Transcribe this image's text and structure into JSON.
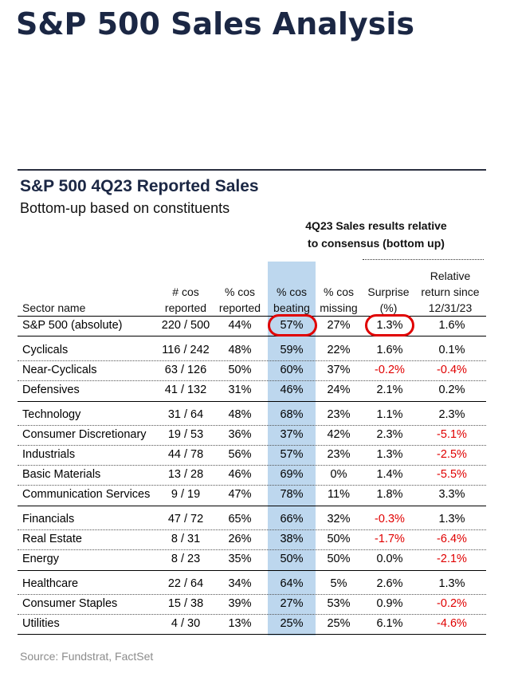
{
  "page": {
    "title": "S&P 500 Sales Analysis",
    "source": "Source: Fundstrat, FactSet"
  },
  "chart_data": {
    "type": "table",
    "title": "S&P 500 4Q23 Reported Sales",
    "subtitle": "Bottom-up based on constituents",
    "group_header_line1": "4Q23 Sales results relative",
    "group_header_line2": "to consensus (bottom up)",
    "highlight_color": "#bdd7ee",
    "negative_color": "#e00000",
    "columns": [
      {
        "lines": [
          "Sector name"
        ]
      },
      {
        "lines": [
          "# cos",
          "reported"
        ]
      },
      {
        "lines": [
          "% cos",
          "reported"
        ]
      },
      {
        "lines": [
          "% cos",
          "beating"
        ]
      },
      {
        "lines": [
          "% cos",
          "missing"
        ]
      },
      {
        "lines": [
          "Surprise",
          "(%)"
        ]
      },
      {
        "lines": [
          "Relative",
          "return since",
          "12/31/23"
        ]
      }
    ],
    "rows": [
      {
        "sector": "S&P 500 (absolute)",
        "reported": "220 / 500",
        "pct_reported": "44%",
        "pct_beating": "57%",
        "pct_missing": "27%",
        "surprise": "1.3%",
        "rel_return": "1.6%"
      },
      {
        "sector": "Cyclicals",
        "reported": "116 / 242",
        "pct_reported": "48%",
        "pct_beating": "59%",
        "pct_missing": "22%",
        "surprise": "1.6%",
        "rel_return": "0.1%"
      },
      {
        "sector": "Near-Cyclicals",
        "reported": "63 / 126",
        "pct_reported": "50%",
        "pct_beating": "60%",
        "pct_missing": "37%",
        "surprise": "-0.2%",
        "rel_return": "-0.4%"
      },
      {
        "sector": "Defensives",
        "reported": "41 / 132",
        "pct_reported": "31%",
        "pct_beating": "46%",
        "pct_missing": "24%",
        "surprise": "2.1%",
        "rel_return": "0.2%"
      },
      {
        "sector": "Technology",
        "reported": "31 / 64",
        "pct_reported": "48%",
        "pct_beating": "68%",
        "pct_missing": "23%",
        "surprise": "1.1%",
        "rel_return": "2.3%"
      },
      {
        "sector": "Consumer Discretionary",
        "reported": "19 / 53",
        "pct_reported": "36%",
        "pct_beating": "37%",
        "pct_missing": "42%",
        "surprise": "2.3%",
        "rel_return": "-5.1%"
      },
      {
        "sector": "Industrials",
        "reported": "44 / 78",
        "pct_reported": "56%",
        "pct_beating": "57%",
        "pct_missing": "23%",
        "surprise": "1.3%",
        "rel_return": "-2.5%"
      },
      {
        "sector": "Basic Materials",
        "reported": "13 / 28",
        "pct_reported": "46%",
        "pct_beating": "69%",
        "pct_missing": "0%",
        "surprise": "1.4%",
        "rel_return": "-5.5%"
      },
      {
        "sector": "Communication Services",
        "reported": "9 / 19",
        "pct_reported": "47%",
        "pct_beating": "78%",
        "pct_missing": "11%",
        "surprise": "1.8%",
        "rel_return": "3.3%"
      },
      {
        "sector": "Financials",
        "reported": "47 / 72",
        "pct_reported": "65%",
        "pct_beating": "66%",
        "pct_missing": "32%",
        "surprise": "-0.3%",
        "rel_return": "1.3%"
      },
      {
        "sector": "Real Estate",
        "reported": "8 / 31",
        "pct_reported": "26%",
        "pct_beating": "38%",
        "pct_missing": "50%",
        "surprise": "-1.7%",
        "rel_return": "-6.4%"
      },
      {
        "sector": "Energy",
        "reported": "8 / 23",
        "pct_reported": "35%",
        "pct_beating": "50%",
        "pct_missing": "50%",
        "surprise": "0.0%",
        "rel_return": "-2.1%"
      },
      {
        "sector": "Healthcare",
        "reported": "22 / 64",
        "pct_reported": "34%",
        "pct_beating": "64%",
        "pct_missing": "5%",
        "surprise": "2.6%",
        "rel_return": "1.3%"
      },
      {
        "sector": "Consumer Staples",
        "reported": "15 / 38",
        "pct_reported": "39%",
        "pct_beating": "27%",
        "pct_missing": "53%",
        "surprise": "0.9%",
        "rel_return": "-0.2%"
      },
      {
        "sector": "Utilities",
        "reported": "4 / 30",
        "pct_reported": "13%",
        "pct_beating": "25%",
        "pct_missing": "25%",
        "surprise": "6.1%",
        "rel_return": "-4.6%"
      }
    ],
    "circled_cells": [
      {
        "row": "S&P 500 (absolute)",
        "column": "% cos beating",
        "value": "57%"
      },
      {
        "row": "S&P 500 (absolute)",
        "column": "Surprise (%)",
        "value": "1.3%"
      }
    ]
  }
}
